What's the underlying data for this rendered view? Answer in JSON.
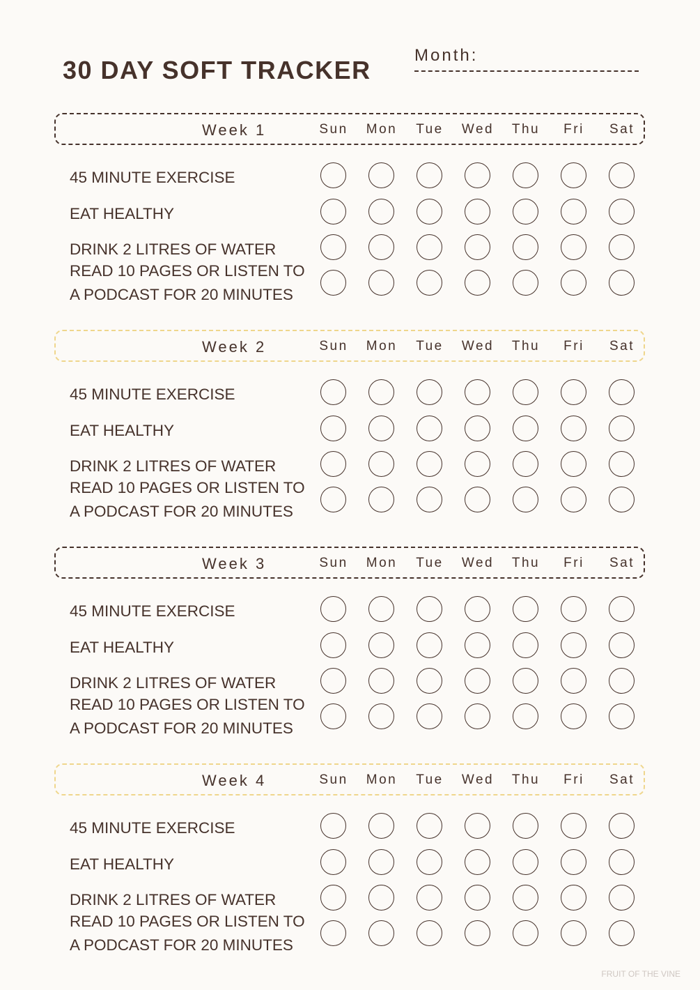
{
  "title": "30 DAY SOFT TRACKER",
  "month_label": "Month:",
  "days": [
    "Sun",
    "Mon",
    "Tue",
    "Wed",
    "Thu",
    "Fri",
    "Sat"
  ],
  "weeks": [
    {
      "label": "Week 1",
      "border_color": "#46322b"
    },
    {
      "label": "Week 2",
      "border_color": "#efd68c"
    },
    {
      "label": "Week 3",
      "border_color": "#46322b"
    },
    {
      "label": "Week 4",
      "border_color": "#efd68c"
    }
  ],
  "habits": [
    {
      "label": "45 MINUTE EXERCISE"
    },
    {
      "label": "EAT HEALTHY"
    },
    {
      "label": "DRINK 2 LITRES OF WATER"
    },
    {
      "label": "READ 10 PAGES OR LISTEN TO",
      "label2": "A PODCAST FOR 20 MINUTES"
    }
  ],
  "footer": "FRUIT OF THE VINE",
  "colors": {
    "text": "#46322b",
    "accent": "#efd68c",
    "background": "#fcfaf7"
  }
}
